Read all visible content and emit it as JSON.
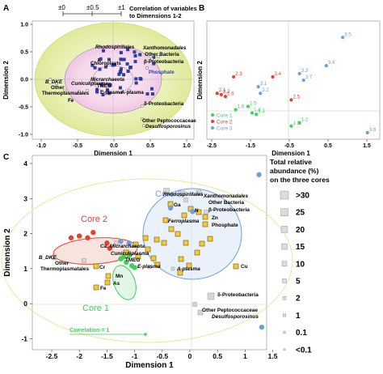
{
  "panels": {
    "A": {
      "letter": "A",
      "scale_labels": [
        "±0",
        "±0.5",
        "±1"
      ],
      "scale_caption": "Correlation of variables to Dimensions 1-2",
      "xlabel": "Dimension 1",
      "ylabel": "Dimension 2",
      "xticks": [
        "-1.0",
        "-0.5",
        "0.0",
        "0.5",
        "1.0"
      ],
      "yticks": [
        "1.0",
        "0.5",
        "0.0",
        "-0.5",
        "-1.0"
      ],
      "labels": {
        "rhodospirillales": "Rhodospirillales",
        "xanthomonadales": "Xanthomonadales",
        "other_bacteria": "Other Bacteria",
        "beta_proteo": "β-Proteobacteria",
        "chloroplasts": "Chloroplasts",
        "phosphate": "Phosphate",
        "b_dke": "B_DKE",
        "other_thermo": "Other",
        "thermoplasmatales": "Thermoplasmatales",
        "cuniculiplasma": "Cuniculiplasma",
        "micrarchaeota": "Micrarchaeota",
        "tmeg": "TMEG",
        "e_plasma": "E-plasma",
        "a_plasma": "A-plasma",
        "fe": "Fe",
        "delta_proteo": "δ-Proteobacteria",
        "other_pepto": "Other Peptococcaceae",
        "desulfo": "Desulfosporosinus"
      }
    },
    "B": {
      "letter": "B",
      "xlabel": "Dimension 1",
      "ylabel": "Dimension 2",
      "xticks": [
        "-2.5",
        "-1.5",
        "-0.5",
        "0.5",
        "1.5"
      ],
      "legend": [
        "Core 1",
        "Core 2",
        "Core 3"
      ]
    },
    "C": {
      "letter": "C",
      "xlabel": "Dimension 1",
      "ylabel": "Dimension 2",
      "xticks": [
        "-2.5",
        "-2",
        "-1.5",
        "-1",
        "-0.5",
        "0",
        "0.5",
        "1",
        "1.5"
      ],
      "yticks": [
        "4",
        "3",
        "2",
        "1",
        "0",
        "-1"
      ],
      "core_labels": [
        "Core 3",
        "Core 2",
        "Core 1"
      ],
      "correlation_label": "Correlation = 1",
      "labels": {
        "rhodospirillales": "Rhodospirillales",
        "xanthomonadales": "Xanthomonadales",
        "other_bacteria": "Other Bacteria",
        "beta_proteo": "β-Proteobacteria",
        "ga": "Ga",
        "n": "N",
        "zn": "Zn",
        "phosphate": "Phosphate",
        "ferroplasma": "Ferroplasma",
        "ca_micr": "Ca. Micrarchaeota",
        "cuniculiplasma": "Cuniculiplasma",
        "tmeg": "TMEG",
        "e_plasma": "E-plasma",
        "a_plasma": "A-plasma",
        "b_dke": "B_DKE",
        "other": "Other",
        "thermoplasmatales": "Thermoplasmatales",
        "cr": "Cr",
        "mn": "Mn",
        "as": "As",
        "fe": "Fe",
        "cu": "Cu",
        "delta_proteo": "δ-Proteobacteria",
        "other_pepto": "Other Peptococcaceae",
        "desulfo": "Desulfosporosinus"
      }
    },
    "size_legend": {
      "title": [
        "Total relative",
        "abundance (%)",
        "on the three cores"
      ],
      "entries": [
        ">30",
        "25",
        "20",
        "15",
        "10",
        "5",
        "2",
        "1",
        "0.1",
        "<0.1"
      ]
    },
    "colors": {
      "core1": "#3fcf5a",
      "core2": "#e8402e",
      "core3": "#6f9fdc",
      "env": "#e2b400",
      "taxa_a": "#2b3fa8",
      "halo": "#e9f2b8",
      "legend_box": "#dcdcdc"
    }
  },
  "chart_data": [
    {
      "panel": "B",
      "type": "scatter",
      "xlabel": "Dimension 1",
      "ylabel": "Dimension 2",
      "series": [
        {
          "name": "Core 1",
          "points": [
            {
              "x": -1.9,
              "y": 0.25,
              "label": "1.6"
            },
            {
              "x": -1.6,
              "y": 0.3,
              "label": "1.5"
            },
            {
              "x": -1.5,
              "y": 0.2,
              "label": "1.4"
            },
            {
              "x": -1.4,
              "y": 0.18,
              "label": "1.3"
            },
            {
              "x": -0.55,
              "y": 0.0,
              "label": "1.1"
            },
            {
              "x": -0.35,
              "y": 0.05,
              "label": "1.2"
            }
          ]
        },
        {
          "name": "Core 2",
          "points": [
            {
              "x": -2.35,
              "y": 0.5,
              "label": "2.1"
            },
            {
              "x": -2.25,
              "y": 0.48,
              "label": "2.2"
            },
            {
              "x": -2.15,
              "y": 0.45,
              "label": "2.6"
            },
            {
              "x": -1.95,
              "y": 0.75,
              "label": "2.3"
            },
            {
              "x": -1.0,
              "y": 0.75,
              "label": "2.4"
            },
            {
              "x": -0.55,
              "y": 0.4,
              "label": "2.5"
            }
          ]
        },
        {
          "name": "Core 3",
          "points": [
            {
              "x": 0.7,
              "y": 1.35,
              "label": "3.5"
            },
            {
              "x": 0.3,
              "y": 0.92,
              "label": "3.4"
            },
            {
              "x": -0.25,
              "y": 0.7,
              "label": "3.7"
            },
            {
              "x": -0.35,
              "y": 0.8,
              "label": "3.3"
            },
            {
              "x": -1.35,
              "y": 0.6,
              "label": "3.1"
            },
            {
              "x": -1.3,
              "y": 0.5,
              "label": "3.2"
            },
            {
              "x": 1.3,
              "y": -0.1,
              "label": "3.6"
            }
          ]
        }
      ]
    },
    {
      "panel": "C",
      "type": "scatter",
      "xlabel": "Dimension 1",
      "ylabel": "Dimension 2",
      "xlim": [
        -2.6,
        1.6
      ],
      "ylim": [
        -1.2,
        4.2
      ],
      "series": [
        {
          "name": "Core 1",
          "points": [
            {
              "x": -1.05,
              "y": 1.1
            },
            {
              "x": -1.0,
              "y": 1.05
            },
            {
              "x": -1.15,
              "y": 1.2
            },
            {
              "x": -1.25,
              "y": 1.3
            },
            {
              "x": -1.1,
              "y": 1.4
            },
            {
              "x": -1.2,
              "y": 1.35
            }
          ]
        },
        {
          "name": "Core 2",
          "points": [
            {
              "x": -2.0,
              "y": 1.95
            },
            {
              "x": -1.75,
              "y": 2.05
            },
            {
              "x": -1.85,
              "y": 1.9
            },
            {
              "x": -2.15,
              "y": 1.9
            },
            {
              "x": -1.5,
              "y": 1.75
            },
            {
              "x": -1.45,
              "y": 1.6
            }
          ]
        },
        {
          "name": "Core 3",
          "points": [
            {
              "x": 1.25,
              "y": 3.7
            },
            {
              "x": 0.05,
              "y": 2.65
            },
            {
              "x": -0.35,
              "y": 2.75
            },
            {
              "x": -1.1,
              "y": 1.75
            },
            {
              "x": -1.25,
              "y": 1.8
            },
            {
              "x": 1.3,
              "y": -0.65
            }
          ]
        }
      ]
    }
  ]
}
